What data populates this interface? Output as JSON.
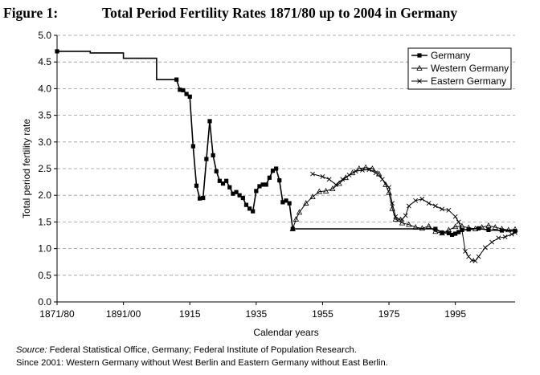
{
  "figure": {
    "number": "Figure 1:",
    "title": "Total Period Fertility Rates 1871/80 up to 2004 in Germany"
  },
  "notes": {
    "source_label": "Source:",
    "source_text": " Federal Statistical Office, Germany; Federal Institute of Population Research.",
    "line2": "Since 2001: Western Germany without West Berlin and Eastern Germany without East Berlin."
  },
  "chart_data": {
    "type": "line",
    "xlabel": "Calendar years",
    "ylabel": "Total period fertility rate",
    "ylim": [
      0,
      5
    ],
    "yticks": [
      "0.0",
      "0.5",
      "1.0",
      "1.5",
      "2.0",
      "2.5",
      "3.0",
      "3.5",
      "4.0",
      "4.5",
      "5.0"
    ],
    "xlim": [
      1866,
      2004
    ],
    "xticks": [
      {
        "x": 1866,
        "label": "1871/80"
      },
      {
        "x": 1886,
        "label": "1891/00"
      },
      {
        "x": 1906,
        "label": "1915"
      },
      {
        "x": 1926,
        "label": "1935"
      },
      {
        "x": 1946,
        "label": "1955"
      },
      {
        "x": 1966,
        "label": "1975"
      },
      {
        "x": 1986,
        "label": "1995"
      }
    ],
    "grid": "horizontal dashed",
    "legend": "top-right",
    "series": [
      {
        "name": "Germany",
        "marker": "square",
        "color": "#000000",
        "points": [
          [
            1866,
            4.7
          ],
          [
            1876,
            4.7
          ],
          [
            1876,
            4.67
          ],
          [
            1886,
            4.67
          ],
          [
            1886,
            4.57
          ],
          [
            1896,
            4.57
          ],
          [
            1896,
            4.17
          ],
          [
            1902,
            4.17
          ],
          [
            1903,
            3.98
          ],
          [
            1904,
            3.97
          ],
          [
            1905,
            3.9
          ],
          [
            1906,
            3.85
          ],
          [
            1907,
            2.92
          ],
          [
            1908,
            2.18
          ],
          [
            1909,
            1.94
          ],
          [
            1910,
            1.95
          ],
          [
            1911,
            2.68
          ],
          [
            1912,
            3.39
          ],
          [
            1913,
            2.75
          ],
          [
            1914,
            2.45
          ],
          [
            1915,
            2.27
          ],
          [
            1916,
            2.22
          ],
          [
            1917,
            2.27
          ],
          [
            1918,
            2.15
          ],
          [
            1919,
            2.03
          ],
          [
            1920,
            2.06
          ],
          [
            1921,
            2.0
          ],
          [
            1922,
            1.95
          ],
          [
            1923,
            1.82
          ],
          [
            1924,
            1.75
          ],
          [
            1925,
            1.7
          ],
          [
            1926,
            2.08
          ],
          [
            1927,
            2.17
          ],
          [
            1928,
            2.2
          ],
          [
            1929,
            2.2
          ],
          [
            1930,
            2.33
          ],
          [
            1931,
            2.46
          ],
          [
            1932,
            2.5
          ],
          [
            1933,
            2.28
          ],
          [
            1934,
            1.87
          ],
          [
            1935,
            1.9
          ],
          [
            1936,
            1.85
          ],
          [
            1937,
            1.37
          ],
          [
            1980,
            1.37
          ],
          [
            1982,
            1.3
          ],
          [
            1984,
            1.29
          ],
          [
            1985,
            1.26
          ],
          [
            1986,
            1.28
          ],
          [
            1987,
            1.31
          ],
          [
            1988,
            1.35
          ],
          [
            1990,
            1.36
          ],
          [
            1993,
            1.38
          ],
          [
            1996,
            1.35
          ],
          [
            2000,
            1.34
          ],
          [
            2004,
            1.33
          ]
        ]
      },
      {
        "name": "Western Germany",
        "marker": "triangle",
        "color": "#000000",
        "points": [
          [
            1937,
            1.37
          ],
          [
            1938,
            1.55
          ],
          [
            1939,
            1.68
          ],
          [
            1941,
            1.85
          ],
          [
            1943,
            1.97
          ],
          [
            1945,
            2.07
          ],
          [
            1947,
            2.08
          ],
          [
            1949,
            2.12
          ],
          [
            1951,
            2.22
          ],
          [
            1953,
            2.33
          ],
          [
            1955,
            2.42
          ],
          [
            1957,
            2.5
          ],
          [
            1959,
            2.52
          ],
          [
            1961,
            2.5
          ],
          [
            1963,
            2.4
          ],
          [
            1965,
            2.2
          ],
          [
            1966,
            2.05
          ],
          [
            1967,
            1.75
          ],
          [
            1968,
            1.55
          ],
          [
            1970,
            1.48
          ],
          [
            1972,
            1.45
          ],
          [
            1974,
            1.4
          ],
          [
            1976,
            1.38
          ],
          [
            1978,
            1.42
          ],
          [
            1980,
            1.32
          ],
          [
            1982,
            1.29
          ],
          [
            1984,
            1.35
          ],
          [
            1986,
            1.41
          ],
          [
            1988,
            1.42
          ],
          [
            1990,
            1.39
          ],
          [
            1992,
            1.37
          ],
          [
            1994,
            1.4
          ],
          [
            1996,
            1.43
          ],
          [
            1998,
            1.4
          ],
          [
            2000,
            1.37
          ],
          [
            2002,
            1.35
          ],
          [
            2004,
            1.36
          ]
        ]
      },
      {
        "name": "Eastern Germany",
        "marker": "x",
        "color": "#000000",
        "points": [
          [
            1943,
            2.4
          ],
          [
            1946,
            2.35
          ],
          [
            1948,
            2.3
          ],
          [
            1950,
            2.2
          ],
          [
            1952,
            2.3
          ],
          [
            1954,
            2.38
          ],
          [
            1956,
            2.45
          ],
          [
            1958,
            2.47
          ],
          [
            1960,
            2.48
          ],
          [
            1962,
            2.42
          ],
          [
            1964,
            2.3
          ],
          [
            1966,
            2.15
          ],
          [
            1967,
            1.85
          ],
          [
            1968,
            1.6
          ],
          [
            1969,
            1.55
          ],
          [
            1970,
            1.55
          ],
          [
            1971,
            1.62
          ],
          [
            1972,
            1.8
          ],
          [
            1974,
            1.9
          ],
          [
            1976,
            1.93
          ],
          [
            1978,
            1.85
          ],
          [
            1980,
            1.8
          ],
          [
            1982,
            1.74
          ],
          [
            1984,
            1.72
          ],
          [
            1986,
            1.6
          ],
          [
            1987,
            1.5
          ],
          [
            1988,
            1.35
          ],
          [
            1989,
            0.95
          ],
          [
            1990,
            0.85
          ],
          [
            1991,
            0.78
          ],
          [
            1992,
            0.77
          ],
          [
            1993,
            0.85
          ],
          [
            1995,
            1.02
          ],
          [
            1997,
            1.12
          ],
          [
            1999,
            1.2
          ],
          [
            2001,
            1.22
          ],
          [
            2003,
            1.27
          ],
          [
            2004,
            1.3
          ]
        ]
      }
    ]
  }
}
